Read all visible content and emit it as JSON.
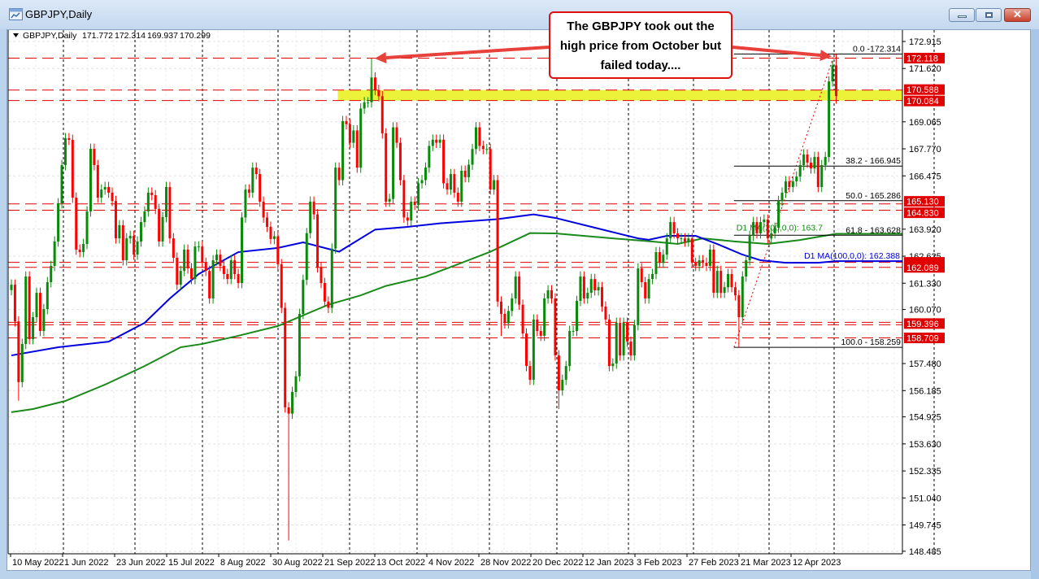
{
  "window": {
    "title": "GBPJPY,Daily",
    "buttons": [
      "minimize",
      "maximize",
      "close"
    ]
  },
  "header": {
    "symbol": "GBPJPY,Daily",
    "open": "171.772",
    "high": "172.314",
    "low": "169.937",
    "close": "170.299"
  },
  "annotation": {
    "lines": [
      "The GBPJPY took out the",
      "high price from October but",
      "failed today...."
    ]
  },
  "colors": {
    "bull": "#0a8a0a",
    "bear": "#ff0000",
    "ma100": "#0000e0",
    "ma200": "#1a8a1a",
    "levels": "#e00000",
    "zone": "#ecf23a",
    "fib": "#000000"
  },
  "chart_data": {
    "type": "candlestick",
    "symbol": "GBPJPY",
    "timeframe": "Daily",
    "ylim": [
      148.485,
      172.915
    ],
    "y_ticks": [
      "172.915",
      "171.620",
      "169.065",
      "167.770",
      "166.475",
      "163.920",
      "162.625",
      "161.330",
      "160.070",
      "157.480",
      "156.185",
      "154.925",
      "153.630",
      "152.335",
      "151.040",
      "149.745",
      "148.485"
    ],
    "x_ticks": [
      "10 May 2022",
      "1 Jun 2022",
      "23 Jun 2022",
      "15 Jul 2022",
      "8 Aug 2022",
      "30 Aug 2022",
      "21 Sep 2022",
      "13 Oct 2022",
      "4 Nov 2022",
      "28 Nov 2022",
      "20 Dec 2022",
      "12 Jan 2023",
      "3 Feb 2023",
      "27 Feb 2023",
      "21 Mar 2023",
      "12 Apr 2023"
    ],
    "x_tick_candle_index": [
      0,
      14,
      29,
      43,
      58,
      72,
      87,
      101,
      116,
      130,
      145,
      159,
      174,
      188,
      203,
      218
    ],
    "closes": [
      161.26,
      159.5,
      156.59,
      158.42,
      161.65,
      158.65,
      159.7,
      160.87,
      159.04,
      160.09,
      161.38,
      162.16,
      163.33,
      165.16,
      166.99,
      168.28,
      168.2,
      165.43,
      162.94,
      162.82,
      163.21,
      164.77,
      167.77,
      166.99,
      165.43,
      165.82,
      165.94,
      165.67,
      165.27,
      163.48,
      164.11,
      162.43,
      163.48,
      163.6,
      162.7,
      163.33,
      164.26,
      164.77,
      165.67,
      165.55,
      164.89,
      163.33,
      164.5,
      165.94,
      163.48,
      162.55,
      161.26,
      161.92,
      162.94,
      162.04,
      161.53,
      163.09,
      163.09,
      162.31,
      161.92,
      160.6,
      162.43,
      162.7,
      162.16,
      161.77,
      161.53,
      162.43,
      161.77,
      161.34,
      164.48,
      165.82,
      165.67,
      166.87,
      166.56,
      165.24,
      164.48,
      164.03,
      163.45,
      163.58,
      162.24,
      160.15,
      155.38,
      155.08,
      156.12,
      156.87,
      159.86,
      161.49,
      163.73,
      165.24,
      164.63,
      162.09,
      161.34,
      160.45,
      160.15,
      162.99,
      166.87,
      166.27,
      169.1,
      168.95,
      168.06,
      168.65,
      166.87,
      169.7,
      170.0,
      170.0,
      171.19,
      170.59,
      170.29,
      168.51,
      165.24,
      165.37,
      168.8,
      168.06,
      166.27,
      164.48,
      164.33,
      165.24,
      165.08,
      166.12,
      166.27,
      166.87,
      167.91,
      168.21,
      168.06,
      168.21,
      166.12,
      165.82,
      166.56,
      165.67,
      165.24,
      166.72,
      166.41,
      167.01,
      167.76,
      168.8,
      167.91,
      167.76,
      167.76,
      165.82,
      166.27,
      160.45,
      159.86,
      159.41,
      160.0,
      160.6,
      161.65,
      160.3,
      158.92,
      157.36,
      156.7,
      159.59,
      159.04,
      158.81,
      160.6,
      160.99,
      160.6,
      157.87,
      156.19,
      156.7,
      157.36,
      159.04,
      159.04,
      160.48,
      161.65,
      160.6,
      160.87,
      161.53,
      160.99,
      161.14,
      160.21,
      159.59,
      157.36,
      157.48,
      159.43,
      157.87,
      159.43,
      158.53,
      157.87,
      159.32,
      162.04,
      161.38,
      160.6,
      161.53,
      161.77,
      162.82,
      162.31,
      162.7,
      163.48,
      164.26,
      163.72,
      163.48,
      163.48,
      163.33,
      163.48,
      162.31,
      162.16,
      162.43,
      162.31,
      162.16,
      162.94,
      160.87,
      161.92,
      160.87,
      161.14,
      161.77,
      161.14,
      160.75,
      159.7,
      161.65,
      162.43,
      163.6,
      164.26,
      163.72,
      164.26,
      164.38,
      163.48,
      163.72,
      163.99,
      165.27,
      165.67,
      166.21,
      165.94,
      166.21,
      166.44,
      166.99,
      167.5,
      167.11,
      166.83,
      167.38,
      165.94,
      166.99,
      167.38,
      171.0,
      171.772,
      170.299
    ],
    "first_open": 161.0,
    "wick_extremes": [
      {
        "index": 2,
        "low": 155.7
      },
      {
        "index": 77,
        "low": 149.0
      },
      {
        "index": 100,
        "high": 172.1
      },
      {
        "index": 136,
        "low": 158.8
      },
      {
        "index": 152,
        "low": 155.3
      },
      {
        "index": 202,
        "low": 158.259
      },
      {
        "index": 228,
        "high": 172.0
      },
      {
        "index": 229,
        "high": 172.314,
        "low": 169.937
      }
    ],
    "ma100": {
      "label": "D1 MA(100,0,0): 162.388",
      "points": [
        [
          0,
          157.87
        ],
        [
          13,
          158.26
        ],
        [
          27,
          158.53
        ],
        [
          37,
          159.43
        ],
        [
          44,
          160.6
        ],
        [
          52,
          161.77
        ],
        [
          63,
          162.82
        ],
        [
          74,
          163.02
        ],
        [
          81,
          163.29
        ],
        [
          91,
          162.84
        ],
        [
          101,
          163.9
        ],
        [
          110,
          164.03
        ],
        [
          119,
          164.2
        ],
        [
          135,
          164.4
        ],
        [
          145,
          164.63
        ],
        [
          151,
          164.46
        ],
        [
          162,
          163.99
        ],
        [
          174,
          163.48
        ],
        [
          177,
          163.41
        ],
        [
          182,
          163.6
        ],
        [
          190,
          163.6
        ],
        [
          196,
          163.21
        ],
        [
          203,
          162.7
        ],
        [
          208,
          162.43
        ],
        [
          215,
          162.31
        ],
        [
          224,
          162.31
        ],
        [
          229,
          162.388
        ]
      ]
    },
    "ma200": {
      "label": "D1 MA(200,0,0): 163.7",
      "points": [
        [
          0,
          155.15
        ],
        [
          6,
          155.3
        ],
        [
          15,
          155.69
        ],
        [
          26,
          156.47
        ],
        [
          37,
          157.36
        ],
        [
          47,
          158.26
        ],
        [
          53,
          158.42
        ],
        [
          63,
          158.81
        ],
        [
          74,
          159.28
        ],
        [
          88,
          160.3
        ],
        [
          97,
          160.75
        ],
        [
          104,
          161.2
        ],
        [
          115,
          161.65
        ],
        [
          124,
          162.24
        ],
        [
          133,
          162.84
        ],
        [
          144,
          163.73
        ],
        [
          151,
          163.72
        ],
        [
          167,
          163.48
        ],
        [
          178,
          163.33
        ],
        [
          185,
          163.21
        ],
        [
          192,
          163.48
        ],
        [
          201,
          163.33
        ],
        [
          210,
          163.21
        ],
        [
          219,
          163.4
        ],
        [
          229,
          163.7
        ]
      ]
    },
    "levels": [
      {
        "price": 172.118,
        "label": "172.118"
      },
      {
        "price": 170.588,
        "label": "170.588"
      },
      {
        "price": 170.084,
        "label": "170.084"
      },
      {
        "price": 165.13,
        "label": "165.130"
      },
      {
        "price": 164.83,
        "label": "164.830"
      },
      {
        "price": 162.33,
        "label": ""
      },
      {
        "price": 162.089,
        "label": "162.089"
      },
      {
        "price": 159.396,
        "label": "159.396",
        "double": true
      },
      {
        "price": 158.709,
        "label": "158.709"
      }
    ],
    "zone": {
      "from": 170.084,
      "to": 170.588,
      "start_index": 101
    },
    "fibonacci": {
      "start_index": 202,
      "end_index": 229,
      "levels": [
        {
          "ratio": "0.0",
          "price": 172.314,
          "label": "0.0 -172.314"
        },
        {
          "ratio": "38.2",
          "price": 166.945,
          "label": "38.2 - 166.945"
        },
        {
          "ratio": "50.0",
          "price": 165.286,
          "label": "50.0 - 165.286"
        },
        {
          "ratio": "61.8",
          "price": 163.628,
          "label": "61.8 - 163.628"
        },
        {
          "ratio": "100.0",
          "price": 158.259,
          "label": "100.0 - 158.259"
        }
      ]
    },
    "arrows": [
      {
        "to_index": 100,
        "price": 172.1
      },
      {
        "to_index": 228,
        "price": 172.2
      }
    ]
  }
}
